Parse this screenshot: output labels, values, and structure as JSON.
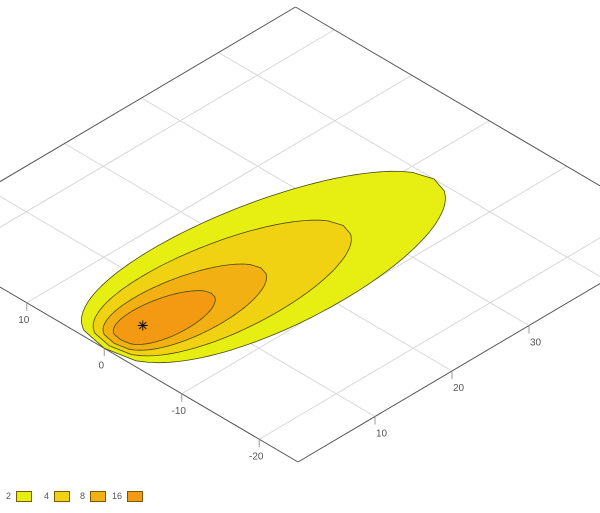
{
  "chart_data": {
    "type": "contour",
    "view": "3d-perspective",
    "x_axis": {
      "range": [
        0,
        50
      ],
      "ticks": [
        10,
        20,
        30
      ],
      "tick_labels": [
        "10",
        "20",
        "30"
      ]
    },
    "y_axis": {
      "range": [
        -25,
        25
      ],
      "ticks": [
        -20,
        -10,
        0,
        10
      ],
      "tick_labels": [
        "-20",
        "-10",
        "0",
        "10"
      ]
    },
    "grid": true,
    "peak_marker": {
      "x": 5,
      "y": 0,
      "symbol": "asterisk"
    },
    "contours": [
      {
        "level": 2,
        "label": "2",
        "color": "#e6ee12",
        "x_start": 0,
        "x_end": 40,
        "max_half_width": 8.5
      },
      {
        "level": 4,
        "label": "4",
        "color": "#f0d212",
        "x_start": 0.6,
        "x_end": 29,
        "max_half_width": 6
      },
      {
        "level": 8,
        "label": "8",
        "color": "#f2b012",
        "x_start": 1.2,
        "x_end": 19,
        "max_half_width": 4
      },
      {
        "level": 16,
        "label": "16",
        "color": "#f49a12",
        "x_start": 2,
        "x_end": 13,
        "max_half_width": 2.6
      }
    ],
    "legend_placement": "bottom-left"
  }
}
